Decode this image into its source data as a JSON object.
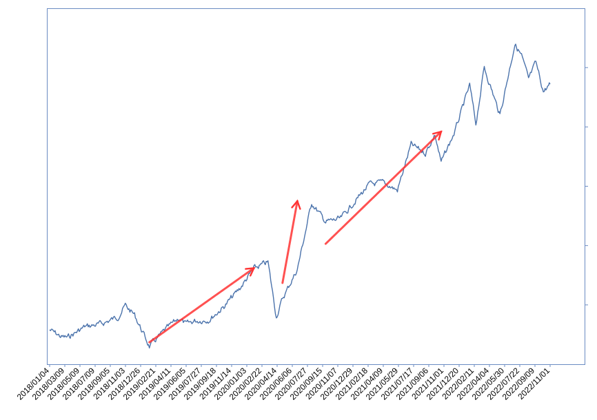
{
  "chart_data": {
    "type": "line",
    "title": "",
    "xlabel": "",
    "ylabel": "",
    "x_tick_labels": [
      "2018/01/04",
      "2018/03/09",
      "2018/05/09",
      "2018/07/09",
      "2018/09/05",
      "2018/11/03",
      "2018/12/26",
      "2019/02/21",
      "2019/04/11",
      "2019/06/05",
      "2019/07/27",
      "2019/09/18",
      "2019/11/14",
      "2020/01/03",
      "2020/02/22",
      "2020/04/14",
      "2020/06/06",
      "2020/07/27",
      "2020/09/15",
      "2020/11/07",
      "2020/12/29",
      "2021/02/18",
      "2021/04/09",
      "2021/05/29",
      "2021/07/17",
      "2021/09/06",
      "2021/11/01",
      "2021/12/20",
      "2022/02/11",
      "2022/04/04",
      "2022/05/30",
      "2022/07/22",
      "2022/09/09",
      "2022/11/01"
    ],
    "y_tick_count": 5,
    "ylim": [
      0,
      6
    ],
    "grid": false,
    "legend": "none",
    "series": [
      {
        "color": "#4a72ab",
        "x": [
          "2018/01/04",
          "2018/02/15",
          "2018/03/09",
          "2018/05/09",
          "2018/07/09",
          "2018/09/05",
          "2018/10/01",
          "2018/11/03",
          "2018/12/26",
          "2019/02/21",
          "2019/04/11",
          "2019/05/05",
          "2019/06/05",
          "2019/07/27",
          "2019/09/18",
          "2019/11/14",
          "2020/01/03",
          "2020/02/22",
          "2020/03/23",
          "2020/04/14",
          "2020/06/06",
          "2020/07/27",
          "2020/09/15",
          "2020/11/07",
          "2020/12/29",
          "2021/02/18",
          "2021/04/09",
          "2021/05/29",
          "2021/07/17",
          "2021/09/06",
          "2021/10/10",
          "2021/11/01",
          "2021/12/20",
          "2022/02/11",
          "2022/03/05",
          "2022/04/04",
          "2022/05/30",
          "2022/07/22",
          "2022/08/15",
          "2022/09/09",
          "2022/10/05",
          "2022/11/01",
          "2022/11/25"
        ],
        "values": [
          0.58,
          0.46,
          0.45,
          0.63,
          0.68,
          0.8,
          0.99,
          0.83,
          0.3,
          0.58,
          0.78,
          0.67,
          0.73,
          0.75,
          0.97,
          1.28,
          1.61,
          1.72,
          0.8,
          1.1,
          1.6,
          2.72,
          2.4,
          2.45,
          2.75,
          3.03,
          3.06,
          2.93,
          3.7,
          3.56,
          3.87,
          3.4,
          3.92,
          4.7,
          4.05,
          5.0,
          4.2,
          5.4,
          5.2,
          4.8,
          5.08,
          4.6,
          4.72
        ]
      }
    ],
    "annotations": [
      {
        "type": "arrow",
        "color": "#ff3333",
        "from": [
          "2018/12/26",
          0.37
        ],
        "to": [
          "2020/01/03",
          1.62
        ]
      },
      {
        "type": "arrow",
        "color": "#ff3333",
        "from": [
          "2020/04/14",
          1.37
        ],
        "to": [
          "2020/06/06",
          2.75
        ]
      },
      {
        "type": "arrow",
        "color": "#ff3333",
        "from": [
          "2020/09/15",
          2.03
        ],
        "to": [
          "2021/11/01",
          3.92
        ]
      }
    ]
  }
}
